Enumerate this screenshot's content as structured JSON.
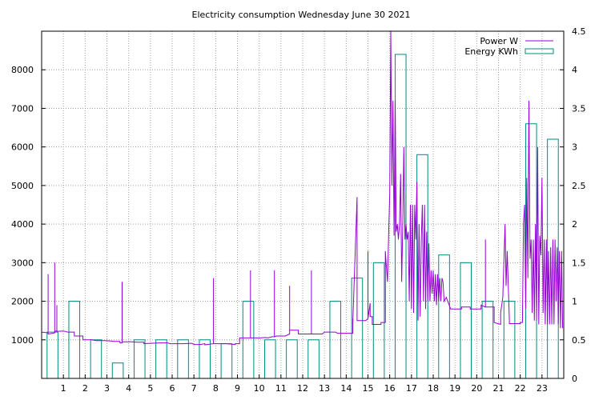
{
  "chart_data": {
    "type": "line",
    "title": "Electricity consumption Wednesday June 30 2021",
    "xlabel": "",
    "ylabel": "",
    "y2label": "",
    "grid": true,
    "legend_position": "top-right",
    "x_ticks": [
      "1",
      "2",
      "3",
      "4",
      "5",
      "6",
      "7",
      "8",
      "9",
      "10",
      "11",
      "12",
      "13",
      "14",
      "15",
      "16",
      "17",
      "18",
      "19",
      "20",
      "21",
      "22",
      "23"
    ],
    "y_left_range": [
      0,
      9000
    ],
    "y_left_ticks": [
      "1000",
      "2000",
      "3000",
      "4000",
      "5000",
      "6000",
      "7000",
      "8000"
    ],
    "y_right_range": [
      0,
      4.5
    ],
    "y_right_ticks": [
      "0",
      "0.5",
      "1",
      "1.5",
      "2",
      "2.5",
      "3",
      "3.5",
      "4",
      "4.5"
    ],
    "series": [
      {
        "name": "Power W",
        "color": "#9400d3",
        "axis": "left",
        "style": "line",
        "points": [
          [
            0,
            1200
          ],
          [
            0.3,
            1180
          ],
          [
            0.3,
            2700
          ],
          [
            0.3,
            1150
          ],
          [
            0.6,
            1180
          ],
          [
            0.6,
            3000
          ],
          [
            0.6,
            1200
          ],
          [
            0.7,
            1250
          ],
          [
            0.7,
            1900
          ],
          [
            0.7,
            1220
          ],
          [
            1.0,
            1230
          ],
          [
            1.2,
            1200
          ],
          [
            1.5,
            1200
          ],
          [
            1.5,
            1100
          ],
          [
            1.9,
            1100
          ],
          [
            1.9,
            1000
          ],
          [
            2.3,
            1000
          ],
          [
            2.5,
            980
          ],
          [
            2.9,
            980
          ],
          [
            3.2,
            970
          ],
          [
            3.3,
            960
          ],
          [
            3.6,
            960
          ],
          [
            3.6,
            920
          ],
          [
            3.7,
            920
          ],
          [
            3.7,
            2500
          ],
          [
            3.7,
            950
          ],
          [
            4.1,
            950
          ],
          [
            4.4,
            940
          ],
          [
            4.7,
            940
          ],
          [
            4.7,
            900
          ],
          [
            5.0,
            910
          ],
          [
            5.5,
            920
          ],
          [
            5.8,
            920
          ],
          [
            5.9,
            900
          ],
          [
            6.5,
            900
          ],
          [
            6.9,
            910
          ],
          [
            7.0,
            880
          ],
          [
            7.3,
            880
          ],
          [
            7.5,
            900
          ],
          [
            7.5,
            870
          ],
          [
            7.9,
            900
          ],
          [
            7.9,
            2600
          ],
          [
            7.9,
            900
          ],
          [
            8.5,
            900
          ],
          [
            8.9,
            880
          ],
          [
            8.9,
            900
          ],
          [
            9.1,
            900
          ],
          [
            9.1,
            1050
          ],
          [
            9.6,
            1050
          ],
          [
            9.6,
            2800
          ],
          [
            9.6,
            2100
          ],
          [
            9.6,
            1050
          ],
          [
            10.0,
            1050
          ],
          [
            10.3,
            1060
          ],
          [
            10.4,
            1050
          ],
          [
            10.6,
            1080
          ],
          [
            10.7,
            1080
          ],
          [
            10.7,
            2800
          ],
          [
            10.7,
            1080
          ],
          [
            10.8,
            1100
          ],
          [
            11.2,
            1100
          ],
          [
            11.4,
            1150
          ],
          [
            11.4,
            2400
          ],
          [
            11.4,
            1250
          ],
          [
            11.8,
            1250
          ],
          [
            11.8,
            1150
          ],
          [
            12.2,
            1150
          ],
          [
            12.4,
            1150
          ],
          [
            12.4,
            2800
          ],
          [
            12.4,
            1150
          ],
          [
            12.7,
            1150
          ],
          [
            12.9,
            1150
          ],
          [
            13.0,
            1200
          ],
          [
            13.5,
            1200
          ],
          [
            13.6,
            1170
          ],
          [
            14.0,
            1170
          ],
          [
            14.3,
            1170
          ],
          [
            14.3,
            1550
          ],
          [
            14.3,
            1400
          ],
          [
            14.5,
            4700
          ],
          [
            14.5,
            1500
          ],
          [
            14.9,
            1500
          ],
          [
            15.0,
            1550
          ],
          [
            15.0,
            3300
          ],
          [
            15.0,
            1550
          ],
          [
            15.1,
            1950
          ],
          [
            15.1,
            1600
          ],
          [
            15.2,
            1600
          ],
          [
            15.2,
            1400
          ],
          [
            15.6,
            1400
          ],
          [
            15.6,
            1450
          ],
          [
            15.8,
            1450
          ],
          [
            15.8,
            3300
          ],
          [
            15.9,
            2500
          ],
          [
            15.95,
            3700
          ],
          [
            16.0,
            4800
          ],
          [
            16.05,
            9000
          ],
          [
            16.1,
            5000
          ],
          [
            16.15,
            7200
          ],
          [
            16.2,
            3700
          ],
          [
            16.25,
            7200
          ],
          [
            16.3,
            3800
          ],
          [
            16.35,
            4000
          ],
          [
            16.4,
            3600
          ],
          [
            16.45,
            4000
          ],
          [
            16.5,
            5300
          ],
          [
            16.55,
            2500
          ],
          [
            16.6,
            4000
          ],
          [
            16.65,
            6000
          ],
          [
            16.7,
            3600
          ],
          [
            16.75,
            4000
          ],
          [
            16.8,
            3600
          ],
          [
            16.85,
            3800
          ],
          [
            16.9,
            2000
          ],
          [
            16.95,
            4500
          ],
          [
            17.0,
            1800
          ],
          [
            17.05,
            4500
          ],
          [
            17.1,
            1700
          ],
          [
            17.15,
            4500
          ],
          [
            17.2,
            3600
          ],
          [
            17.25,
            5100
          ],
          [
            17.3,
            1500
          ],
          [
            17.35,
            4000
          ],
          [
            17.4,
            1600
          ],
          [
            17.45,
            3600
          ],
          [
            17.5,
            4500
          ],
          [
            17.55,
            2000
          ],
          [
            17.6,
            4500
          ],
          [
            17.65,
            1800
          ],
          [
            17.7,
            3800
          ],
          [
            17.75,
            2000
          ],
          [
            17.8,
            3500
          ],
          [
            17.85,
            2000
          ],
          [
            17.9,
            2800
          ],
          [
            17.95,
            2200
          ],
          [
            18.0,
            2800
          ],
          [
            18.05,
            2000
          ],
          [
            18.1,
            2700
          ],
          [
            18.15,
            1900
          ],
          [
            18.2,
            2700
          ],
          [
            18.25,
            2000
          ],
          [
            18.3,
            2600
          ],
          [
            18.35,
            2000
          ],
          [
            18.4,
            2600
          ],
          [
            18.45,
            2500
          ],
          [
            18.5,
            2000
          ],
          [
            18.6,
            2100
          ],
          [
            18.8,
            1800
          ],
          [
            19.0,
            1800
          ],
          [
            19.3,
            1800
          ],
          [
            19.3,
            1850
          ],
          [
            19.7,
            1850
          ],
          [
            19.7,
            1800
          ],
          [
            20.2,
            1800
          ],
          [
            20.2,
            1900
          ],
          [
            20.4,
            1850
          ],
          [
            20.4,
            3600
          ],
          [
            20.4,
            1850
          ],
          [
            20.8,
            1850
          ],
          [
            20.8,
            1450
          ],
          [
            21.1,
            1400
          ],
          [
            21.1,
            1700
          ],
          [
            21.2,
            2100
          ],
          [
            21.3,
            4000
          ],
          [
            21.35,
            2400
          ],
          [
            21.4,
            3300
          ],
          [
            21.5,
            1500
          ],
          [
            21.5,
            1420
          ],
          [
            22.0,
            1420
          ],
          [
            22.0,
            1450
          ],
          [
            22.1,
            1450
          ],
          [
            22.15,
            4000
          ],
          [
            22.2,
            4500
          ],
          [
            22.25,
            1800
          ],
          [
            22.3,
            5200
          ],
          [
            22.35,
            2600
          ],
          [
            22.4,
            7200
          ],
          [
            22.45,
            3100
          ],
          [
            22.5,
            3600
          ],
          [
            22.55,
            1700
          ],
          [
            22.6,
            3600
          ],
          [
            22.65,
            1500
          ],
          [
            22.7,
            4000
          ],
          [
            22.75,
            1500
          ],
          [
            22.8,
            6000
          ],
          [
            22.85,
            1400
          ],
          [
            22.9,
            3700
          ],
          [
            22.95,
            3200
          ],
          [
            23.0,
            5200
          ],
          [
            23.05,
            1700
          ],
          [
            23.1,
            3600
          ],
          [
            23.15,
            1400
          ],
          [
            23.2,
            3600
          ],
          [
            23.25,
            1400
          ],
          [
            23.3,
            3300
          ],
          [
            23.35,
            1400
          ],
          [
            23.4,
            3400
          ],
          [
            23.45,
            1400
          ],
          [
            23.5,
            3600
          ],
          [
            23.55,
            1400
          ],
          [
            23.6,
            3600
          ],
          [
            23.65,
            2000
          ],
          [
            23.7,
            3400
          ],
          [
            23.75,
            1400
          ],
          [
            23.8,
            3300
          ],
          [
            23.85,
            1300
          ],
          [
            23.9,
            3300
          ],
          [
            23.95,
            1300
          ]
        ]
      },
      {
        "name": "Energy KWh",
        "color": "#008b80",
        "axis": "right",
        "style": "boxes",
        "bins": [
          {
            "hour": 0,
            "value": 0.6
          },
          {
            "hour": 1,
            "value": 1.0
          },
          {
            "hour": 2,
            "value": 0.5
          },
          {
            "hour": 3,
            "value": 0.2
          },
          {
            "hour": 4,
            "value": 0.5
          },
          {
            "hour": 5,
            "value": 0.5
          },
          {
            "hour": 6,
            "value": 0.5
          },
          {
            "hour": 7,
            "value": 0.5
          },
          {
            "hour": 8,
            "value": 0.45
          },
          {
            "hour": 9,
            "value": 1.0
          },
          {
            "hour": 10,
            "value": 0.5
          },
          {
            "hour": 11,
            "value": 0.5
          },
          {
            "hour": 12,
            "value": 0.5
          },
          {
            "hour": 13,
            "value": 1.0
          },
          {
            "hour": 14,
            "value": 1.3
          },
          {
            "hour": 15,
            "value": 1.5
          },
          {
            "hour": 16,
            "value": 4.2
          },
          {
            "hour": 17,
            "value": 2.9
          },
          {
            "hour": 18,
            "value": 1.6
          },
          {
            "hour": 19,
            "value": 1.5
          },
          {
            "hour": 20,
            "value": 1.0
          },
          {
            "hour": 21,
            "value": 1.0
          },
          {
            "hour": 22,
            "value": 3.3
          },
          {
            "hour": 23,
            "value": 3.1
          }
        ]
      }
    ]
  }
}
